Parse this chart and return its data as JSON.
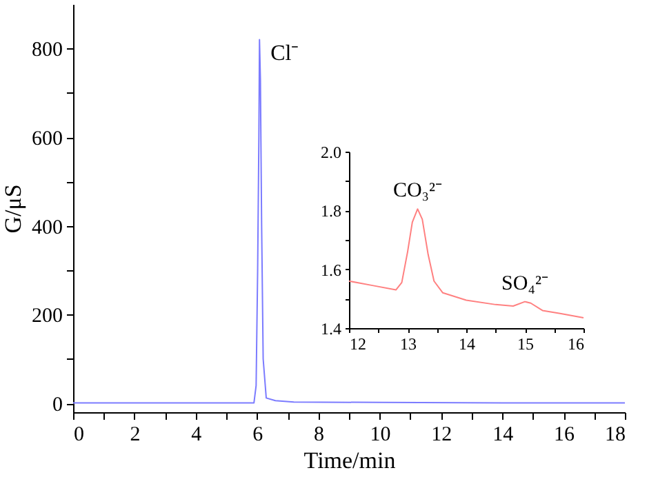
{
  "chart_data": [
    {
      "type": "line",
      "xlabel": "Time/min",
      "ylabel": "G/μS",
      "xlim": [
        0,
        18
      ],
      "ylim": [
        -20,
        900
      ],
      "xticks": [
        0,
        {
          "value": 1,
          "label": null
        },
        2,
        {
          "value": 3,
          "label": null
        },
        4,
        {
          "value": 5,
          "label": null
        },
        6,
        {
          "value": 7,
          "label": null
        },
        8,
        {
          "value": 9,
          "label": null
        },
        10,
        {
          "value": 11,
          "label": null
        },
        12,
        {
          "value": 13,
          "label": null
        },
        14,
        {
          "value": 15,
          "label": null
        },
        16,
        {
          "value": 17,
          "label": null
        },
        18
      ],
      "yticks": [
        0,
        {
          "value": 100,
          "label": null
        },
        200,
        {
          "value": 300,
          "label": null
        },
        400,
        {
          "value": 500,
          "label": null
        },
        600,
        {
          "value": 700,
          "label": null
        },
        800
      ],
      "grid": false,
      "marker": "none",
      "line_style": "solid",
      "series": [
        {
          "color": "#7b7bff",
          "x": [
            0,
            3,
            5.9,
            5.97,
            6.02,
            6.06,
            6.08,
            6.11,
            6.15,
            6.2,
            6.3,
            6.6,
            7.2,
            10,
            14,
            18
          ],
          "values": [
            1,
            1,
            1,
            40,
            300,
            600,
            820,
            730,
            400,
            100,
            12,
            6,
            3,
            2,
            1,
            1
          ]
        }
      ],
      "annotations": [
        {
          "text": "Cl⁻",
          "x": 6.08,
          "y": 820
        }
      ]
    },
    {
      "type": "line",
      "xlim": [
        12,
        16
      ],
      "ylim": [
        1.4,
        2.0
      ],
      "xticks": [
        12,
        {
          "value": 12.5,
          "label": null
        },
        13,
        {
          "value": 13.5,
          "label": null
        },
        14,
        {
          "value": 14.5,
          "label": null
        },
        15,
        {
          "value": 15.5,
          "label": null
        },
        16
      ],
      "yticks": [
        1.4,
        {
          "value": 1.5,
          "label": null
        },
        1.6,
        {
          "value": 1.7,
          "label": null
        },
        1.8,
        {
          "value": 1.9,
          "label": null
        },
        {
          "value": 2,
          "label": "2.0"
        }
      ],
      "grid": false,
      "marker": "none",
      "line_style": "solid",
      "series": [
        {
          "color": "#ff8080",
          "x": [
            12,
            12.4,
            12.8,
            12.9,
            13.0,
            13.08,
            13.17,
            13.25,
            13.35,
            13.45,
            13.6,
            14,
            14.5,
            14.8,
            15.0,
            15.1,
            15.3,
            15.6,
            16
          ],
          "values": [
            1.56,
            1.545,
            1.53,
            1.555,
            1.66,
            1.76,
            1.805,
            1.77,
            1.65,
            1.56,
            1.52,
            1.495,
            1.48,
            1.475,
            1.49,
            1.485,
            1.46,
            1.45,
            1.435
          ]
        }
      ],
      "annotations": [
        {
          "text": "CO₃²⁻",
          "x": 13.17,
          "y": 1.805
        },
        {
          "text": "SO₄²⁻",
          "x": 15.0,
          "y": 1.49
        }
      ]
    }
  ]
}
